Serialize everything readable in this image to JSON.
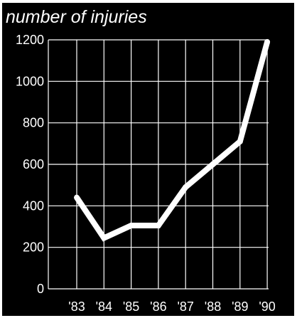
{
  "chart_data": {
    "type": "line",
    "title": "number of injuries",
    "xlabel": "",
    "ylabel": "",
    "categories": [
      "'83",
      "'84",
      "'85",
      "'86",
      "'87",
      "'88",
      "'89",
      "'90"
    ],
    "values": [
      440,
      245,
      305,
      305,
      490,
      600,
      710,
      1190
    ],
    "yticks": [
      0,
      200,
      400,
      600,
      800,
      1000,
      1200
    ],
    "ylim": [
      0,
      1200
    ],
    "grid": true,
    "colors": {
      "background": "#000000",
      "line": "#ffffff",
      "grid": "#ffffff",
      "text": "#ffffff"
    }
  }
}
